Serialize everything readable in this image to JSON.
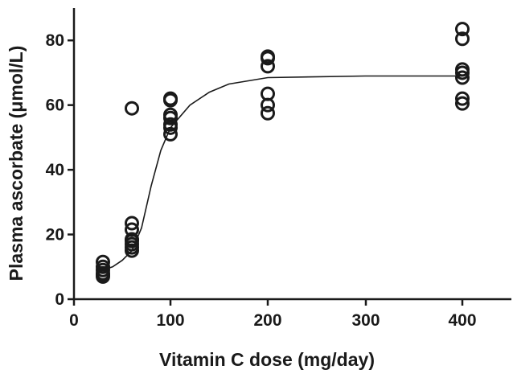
{
  "chart_data": {
    "type": "scatter",
    "title": "",
    "xlabel": "Vitamin C dose (mg/day)",
    "ylabel": "Plasma ascorbate (μmol/L)",
    "x_scale": "categorical-spaced",
    "x_ticks": [
      0,
      100,
      200,
      300,
      400
    ],
    "y_ticks": [
      0,
      20,
      40,
      60,
      80
    ],
    "ylim": [
      0,
      90
    ],
    "grid": false,
    "legend": "none",
    "series": [
      {
        "x": [
          30,
          30,
          30,
          30,
          30,
          30,
          60,
          60,
          60,
          60,
          60,
          60,
          60,
          60,
          100,
          100,
          100,
          100,
          100,
          100,
          100,
          200,
          200,
          200,
          200,
          200,
          200,
          400,
          400,
          400,
          400,
          400,
          400,
          400
        ],
        "y": [
          11.5,
          10,
          9,
          8,
          7.5,
          7,
          59,
          23.5,
          21.5,
          18.5,
          18,
          17,
          16,
          15,
          62,
          61.5,
          57,
          56,
          54,
          53,
          51,
          75,
          74.5,
          72,
          63.5,
          60,
          57.5,
          83.5,
          80.5,
          71,
          70,
          68.5,
          62,
          60.5
        ]
      }
    ],
    "fit_curve": {
      "x": [
        30,
        40,
        50,
        60,
        70,
        80,
        90,
        100,
        120,
        140,
        160,
        200,
        300,
        400
      ],
      "y": [
        9,
        10,
        12,
        15,
        22,
        35,
        46,
        53,
        60,
        64,
        66.5,
        68.5,
        69,
        69
      ]
    }
  }
}
